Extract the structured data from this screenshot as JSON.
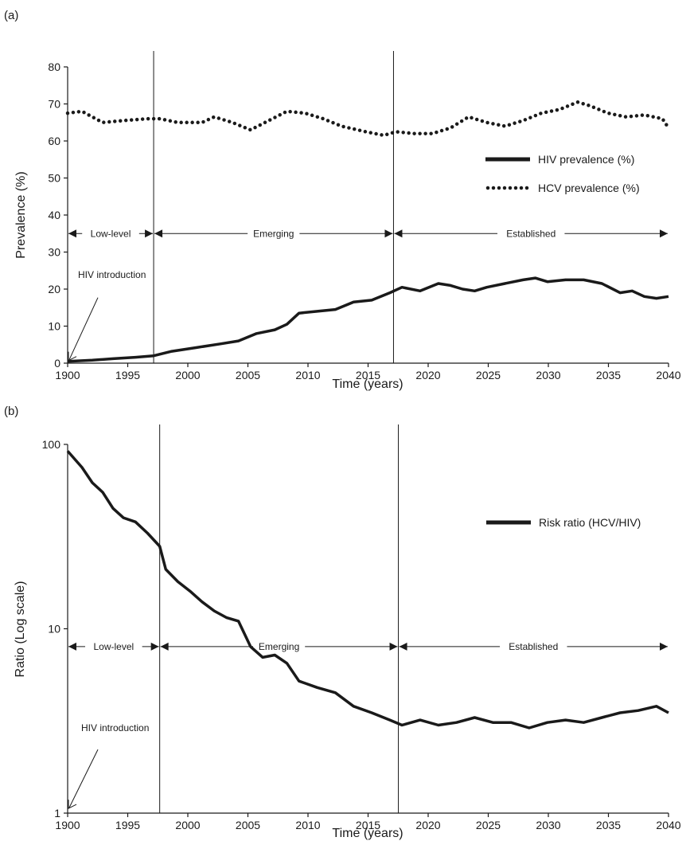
{
  "chart_data": [
    {
      "panel_label": "(a)",
      "type": "line",
      "xlabel": "Time (years)",
      "ylabel": "Prevalence (%)",
      "ylim": [
        0,
        80
      ],
      "yticks": [
        0,
        10,
        20,
        30,
        40,
        50,
        60,
        70,
        80
      ],
      "xticks": [
        "1900",
        "1995",
        "2000",
        "2005",
        "2010",
        "2015",
        "2020",
        "2025",
        "2030",
        "2035",
        "2040"
      ],
      "legend_position": "right",
      "grid": false,
      "phase_boundaries": [
        1997.5,
        2017.3
      ],
      "phases": [
        {
          "label": "Low-level",
          "start": 1900,
          "end": 1997.5,
          "y": 35
        },
        {
          "label": "Emerging",
          "start": 1997.5,
          "end": 2017.3,
          "y": 35
        },
        {
          "label": "Established",
          "start": 2017.3,
          "end": 2040,
          "y": 35
        }
      ],
      "annotation": {
        "text": "HIV introduction",
        "x": 1900.2,
        "y": 0.5
      },
      "series": [
        {
          "name": "HIV prevalence (%)",
          "style": "solid",
          "color": "#1a1a1a",
          "points": [
            [
              1900,
              0.5
            ],
            [
              1992,
              0.8
            ],
            [
              1994,
              1.2
            ],
            [
              1996,
              1.6
            ],
            [
              1997.5,
              2.0
            ],
            [
              1999,
              3.2
            ],
            [
              2001,
              4.2
            ],
            [
              2003,
              5.2
            ],
            [
              2004.5,
              6.0
            ],
            [
              2006,
              8.0
            ],
            [
              2007.5,
              9.0
            ],
            [
              2008.5,
              10.5
            ],
            [
              2009.5,
              13.5
            ],
            [
              2011,
              14.0
            ],
            [
              2012.5,
              14.5
            ],
            [
              2014,
              16.5
            ],
            [
              2015.5,
              17.0
            ],
            [
              2017,
              19.0
            ],
            [
              2018,
              20.5
            ],
            [
              2019.5,
              19.5
            ],
            [
              2021,
              21.5
            ],
            [
              2022,
              21.0
            ],
            [
              2023,
              20.0
            ],
            [
              2024,
              19.5
            ],
            [
              2025,
              20.5
            ],
            [
              2026.5,
              21.5
            ],
            [
              2028,
              22.5
            ],
            [
              2029,
              23.0
            ],
            [
              2030,
              22.0
            ],
            [
              2031.5,
              22.5
            ],
            [
              2033,
              22.5
            ],
            [
              2034.5,
              21.5
            ],
            [
              2036,
              19.0
            ],
            [
              2037,
              19.5
            ],
            [
              2038,
              18.0
            ],
            [
              2039,
              17.5
            ],
            [
              2040,
              18.0
            ]
          ]
        },
        {
          "name": "HCV prevalence (%)",
          "style": "dotted",
          "color": "#1a1a1a",
          "points": [
            [
              1900,
              67.5
            ],
            [
              1991,
              68
            ],
            [
              1993,
              65
            ],
            [
              1995,
              65.5
            ],
            [
              1997,
              66
            ],
            [
              1998,
              66
            ],
            [
              1999.5,
              65
            ],
            [
              2001.5,
              65
            ],
            [
              2002.5,
              66.5
            ],
            [
              2004,
              65
            ],
            [
              2005.5,
              63
            ],
            [
              2007,
              65.5
            ],
            [
              2008.5,
              68
            ],
            [
              2010,
              67.5
            ],
            [
              2011.5,
              66
            ],
            [
              2013,
              64
            ],
            [
              2015,
              62.5
            ],
            [
              2016.5,
              61.5
            ],
            [
              2017.5,
              62.5
            ],
            [
              2019,
              62
            ],
            [
              2020.5,
              62
            ],
            [
              2022,
              63.5
            ],
            [
              2023.5,
              66.5
            ],
            [
              2025,
              65
            ],
            [
              2026.5,
              64
            ],
            [
              2028,
              65.5
            ],
            [
              2029.5,
              67.5
            ],
            [
              2031,
              68.5
            ],
            [
              2032.5,
              70.5
            ],
            [
              2033.5,
              69.5
            ],
            [
              2035,
              67.5
            ],
            [
              2036.5,
              66.5
            ],
            [
              2038,
              67
            ],
            [
              2039.5,
              66
            ],
            [
              2040,
              63.5
            ]
          ]
        }
      ]
    },
    {
      "panel_label": "(b)",
      "type": "line",
      "xlabel": "Time (years)",
      "ylabel": "Ratio (Log scale)",
      "yscale": "log",
      "ylim": [
        1,
        100
      ],
      "yticks": [
        1,
        10,
        100
      ],
      "xticks": [
        "1900",
        "1995",
        "2000",
        "2005",
        "2010",
        "2015",
        "2020",
        "2025",
        "2030",
        "2035",
        "2040"
      ],
      "legend_position": "top-right",
      "grid": false,
      "phase_boundaries": [
        1998,
        2017.7
      ],
      "phases": [
        {
          "label": "Low-level",
          "start": 1900,
          "end": 1998,
          "y": 8
        },
        {
          "label": "Emerging",
          "start": 1998,
          "end": 2017.7,
          "y": 8
        },
        {
          "label": "Established",
          "start": 2017.7,
          "end": 2040,
          "y": 8
        }
      ],
      "annotation": {
        "text": "HIV introduction",
        "x": 1900.4,
        "y": 1.05
      },
      "series": [
        {
          "name": "Risk ratio (HCV/HIV)",
          "style": "solid",
          "color": "#1a1a1a",
          "points": [
            [
              1900,
              92
            ],
            [
              1991,
              75
            ],
            [
              1992,
              62
            ],
            [
              1993,
              55
            ],
            [
              1994,
              45
            ],
            [
              1995,
              40
            ],
            [
              1996,
              38
            ],
            [
              1997,
              33
            ],
            [
              1998,
              28
            ],
            [
              1998.5,
              21
            ],
            [
              1999.5,
              18
            ],
            [
              2000.5,
              16
            ],
            [
              2001.5,
              14
            ],
            [
              2002.5,
              12.5
            ],
            [
              2003.5,
              11.5
            ],
            [
              2004.5,
              11
            ],
            [
              2005.5,
              8
            ],
            [
              2006.5,
              7
            ],
            [
              2007.5,
              7.2
            ],
            [
              2008.5,
              6.5
            ],
            [
              2009.5,
              5.2
            ],
            [
              2011,
              4.8
            ],
            [
              2012.5,
              4.5
            ],
            [
              2014,
              3.8
            ],
            [
              2015.5,
              3.5
            ],
            [
              2017,
              3.2
            ],
            [
              2018,
              3.0
            ],
            [
              2019.5,
              3.2
            ],
            [
              2021,
              3.0
            ],
            [
              2022.5,
              3.1
            ],
            [
              2024,
              3.3
            ],
            [
              2025.5,
              3.1
            ],
            [
              2027,
              3.1
            ],
            [
              2028.5,
              2.9
            ],
            [
              2030,
              3.1
            ],
            [
              2031.5,
              3.2
            ],
            [
              2033,
              3.1
            ],
            [
              2034.5,
              3.3
            ],
            [
              2036,
              3.5
            ],
            [
              2037.5,
              3.6
            ],
            [
              2039,
              3.8
            ],
            [
              2040,
              3.5
            ]
          ]
        }
      ]
    }
  ]
}
